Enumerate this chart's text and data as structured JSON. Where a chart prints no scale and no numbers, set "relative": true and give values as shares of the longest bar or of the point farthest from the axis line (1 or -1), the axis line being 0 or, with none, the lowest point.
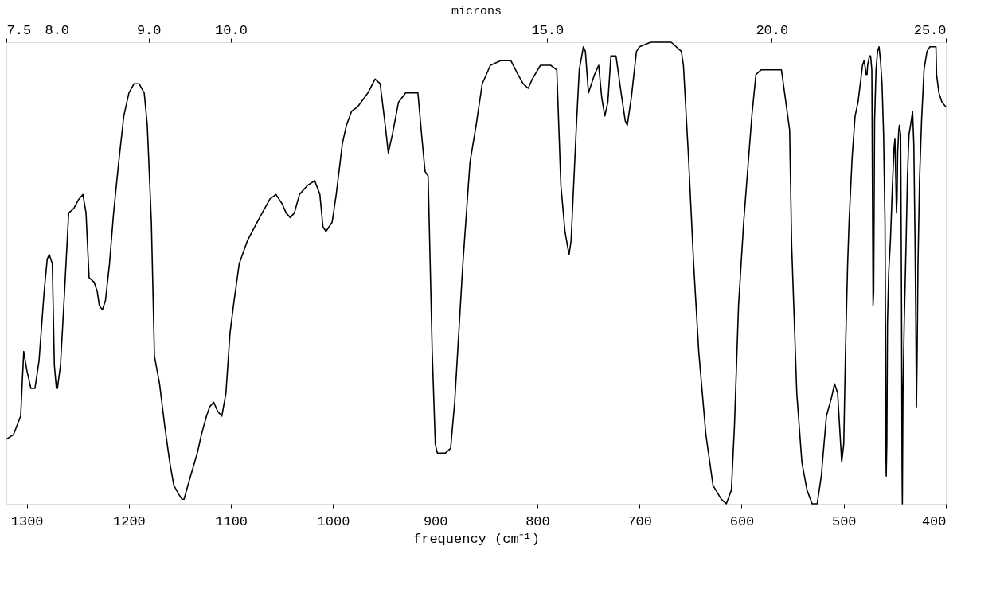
{
  "chart_data": {
    "type": "line",
    "relative": true,
    "xlabel": "frequency (cm⁻¹)",
    "x2label": "microns",
    "xlim": [
      1320,
      400
    ],
    "xticks": [
      1300,
      1200,
      1100,
      1000,
      900,
      800,
      700,
      600,
      500,
      400
    ],
    "x2lim": [
      7.5,
      25
    ],
    "x2ticks": [
      7.5,
      {
        "value": 8,
        "label": "8.0"
      },
      {
        "value": 9,
        "label": "9.0"
      },
      {
        "value": 10,
        "label": "10.0"
      },
      {
        "value": 15,
        "label": "15.0"
      },
      {
        "value": 20,
        "label": "20.0"
      },
      {
        "value": 25,
        "label": "25.0"
      }
    ],
    "tick_labels": "x",
    "grid": false,
    "marker": "none",
    "line_style": "solid",
    "log": "x2",
    "series": [
      {
        "color": "#000000",
        "x": [
          1320,
          1313,
          1306,
          1303,
          1300,
          1296,
          1292,
          1288,
          1283,
          1280,
          1278,
          1275,
          1273,
          1271,
          1270,
          1267,
          1263,
          1259,
          1254,
          1249,
          1245,
          1242,
          1239,
          1234,
          1231,
          1229,
          1226,
          1223,
          1219,
          1215,
          1210,
          1205,
          1200,
          1195,
          1190,
          1185,
          1182,
          1178,
          1175,
          1170,
          1165,
          1160,
          1156,
          1151,
          1148,
          1146,
          1141,
          1133,
          1129,
          1124,
          1121,
          1117,
          1113,
          1109,
          1105,
          1101,
          1097,
          1092,
          1084,
          1072,
          1062,
          1056,
          1050,
          1046,
          1042,
          1038,
          1033,
          1025,
          1018,
          1013,
          1010,
          1007,
          1001,
          997,
          991,
          987,
          982,
          976,
          966,
          959,
          954,
          949,
          946,
          942,
          936,
          929,
          925,
          917,
          913,
          910,
          907,
          905,
          903,
          900,
          898,
          890,
          885,
          881,
          873,
          866,
          860,
          854,
          846,
          836,
          826,
          819,
          814,
          809,
          805,
          797,
          787,
          781,
          777,
          773,
          769,
          767,
          762,
          759,
          755,
          753,
          750,
          744,
          740,
          737,
          734,
          731,
          728,
          723,
          718,
          714,
          712,
          708,
          703,
          700,
          689,
          669,
          659,
          657,
          652,
          647,
          642,
          635,
          628,
          620,
          615,
          610,
          607,
          603,
          598,
          590,
          586,
          581,
          571,
          561,
          553,
          551,
          546,
          541,
          536,
          531,
          526,
          522,
          517,
          512,
          509,
          506,
          502,
          500,
          498.3,
          496.2,
          494.8,
          491.8,
          488.9,
          486.0,
          481.6,
          480.1,
          478.6,
          478.0,
          477.2,
          476.6,
          474.8,
          473.7,
          472.5,
          471.9,
          471.3,
          470.7,
          469.8,
          468.4,
          466.9,
          465.4,
          464.0,
          462.5,
          461.0,
          459.6,
          459.0,
          458.7,
          458.4,
          457.8,
          457.2,
          456.0,
          454.3,
          452.5,
          450.8,
          449.9,
          449.0,
          448.4,
          447.8,
          447.2,
          446.1,
          445.5,
          444.3,
          444.0,
          443.4,
          442.9,
          442.6,
          442.0,
          440.8,
          439.0,
          437.6,
          436.1,
          434.6,
          432.6,
          431.4,
          430.2,
          429.4,
          428.8,
          428.2,
          427.3,
          425.8,
          423.8,
          421.4,
          418.5,
          415.6,
          411.2,
          409.7,
          409.1,
          406.8,
          403.8,
          400
        ],
        "values": [
          0.14,
          0.15,
          0.19,
          0.33,
          0.29,
          0.25,
          0.25,
          0.31,
          0.46,
          0.53,
          0.54,
          0.52,
          0.3,
          0.25,
          0.25,
          0.3,
          0.46,
          0.63,
          0.64,
          0.66,
          0.67,
          0.63,
          0.49,
          0.48,
          0.46,
          0.43,
          0.42,
          0.44,
          0.52,
          0.63,
          0.74,
          0.84,
          0.89,
          0.91,
          0.91,
          0.89,
          0.82,
          0.61,
          0.32,
          0.26,
          0.17,
          0.09,
          0.04,
          0.02,
          0.01,
          0.01,
          0.05,
          0.11,
          0.15,
          0.19,
          0.21,
          0.22,
          0.2,
          0.19,
          0.24,
          0.37,
          0.44,
          0.52,
          0.57,
          0.62,
          0.66,
          0.67,
          0.65,
          0.63,
          0.62,
          0.63,
          0.67,
          0.69,
          0.7,
          0.67,
          0.6,
          0.59,
          0.61,
          0.67,
          0.78,
          0.82,
          0.85,
          0.86,
          0.89,
          0.92,
          0.91,
          0.82,
          0.76,
          0.8,
          0.87,
          0.89,
          0.89,
          0.89,
          0.79,
          0.72,
          0.71,
          0.52,
          0.33,
          0.13,
          0.11,
          0.11,
          0.12,
          0.22,
          0.52,
          0.74,
          0.82,
          0.91,
          0.95,
          0.96,
          0.96,
          0.93,
          0.91,
          0.9,
          0.92,
          0.95,
          0.95,
          0.94,
          0.69,
          0.59,
          0.54,
          0.57,
          0.81,
          0.94,
          0.99,
          0.98,
          0.89,
          0.93,
          0.95,
          0.88,
          0.84,
          0.87,
          0.97,
          0.97,
          0.89,
          0.83,
          0.82,
          0.88,
          0.98,
          0.99,
          1,
          1,
          0.98,
          0.95,
          0.75,
          0.52,
          0.33,
          0.15,
          0.04,
          0.01,
          0,
          0.03,
          0.17,
          0.43,
          0.61,
          0.84,
          0.93,
          0.94,
          0.94,
          0.94,
          0.81,
          0.56,
          0.24,
          0.09,
          0.03,
          0,
          0,
          0.06,
          0.19,
          0.23,
          0.26,
          0.24,
          0.09,
          0.13,
          0.33,
          0.52,
          0.61,
          0.75,
          0.84,
          0.87,
          0.95,
          0.96,
          0.94,
          0.93,
          0.93,
          0.95,
          0.97,
          0.97,
          0.94,
          0.69,
          0.43,
          0.46,
          0.83,
          0.94,
          0.98,
          0.99,
          0.96,
          0.91,
          0.8,
          0.61,
          0.33,
          0.11,
          0.06,
          0.13,
          0.39,
          0.5,
          0.57,
          0.68,
          0.77,
          0.79,
          0.7,
          0.63,
          0.66,
          0.76,
          0.81,
          0.82,
          0.8,
          0.7,
          0.43,
          0.07,
          0,
          0.24,
          0.39,
          0.56,
          0.71,
          0.8,
          0.82,
          0.85,
          0.78,
          0.57,
          0.39,
          0.21,
          0.31,
          0.52,
          0.7,
          0.83,
          0.94,
          0.98,
          0.99,
          0.99,
          0.99,
          0.93,
          0.89,
          0.87,
          0.86
        ]
      }
    ]
  }
}
